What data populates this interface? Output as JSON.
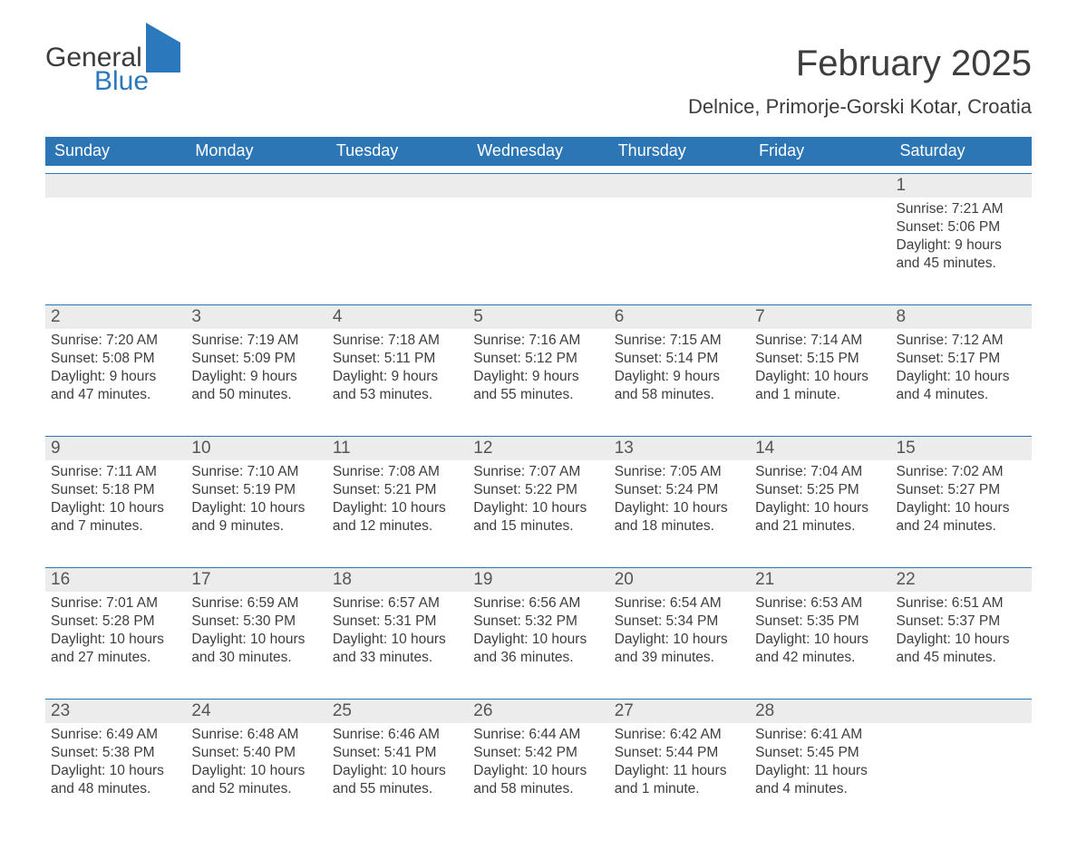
{
  "brand": {
    "general": "General",
    "blue": "Blue"
  },
  "title": "February 2025",
  "location": "Delnice, Primorje-Gorski Kotar, Croatia",
  "colors": {
    "header_bg": "#2d76b6",
    "header_text": "#ffffff",
    "daynum_bg": "#ececec",
    "daynum_border": "#2d76b6",
    "body_text": "#3d3d3d",
    "brand_blue": "#2b78bd",
    "page_bg": "#ffffff"
  },
  "weekdays": [
    "Sunday",
    "Monday",
    "Tuesday",
    "Wednesday",
    "Thursday",
    "Friday",
    "Saturday"
  ],
  "weeks": [
    {
      "nums": [
        "",
        "",
        "",
        "",
        "",
        "",
        "1"
      ],
      "cells": [
        "",
        "",
        "",
        "",
        "",
        "",
        "Sunrise: 7:21 AM\nSunset: 5:06 PM\nDaylight: 9 hours and 45 minutes."
      ]
    },
    {
      "nums": [
        "2",
        "3",
        "4",
        "5",
        "6",
        "7",
        "8"
      ],
      "cells": [
        "Sunrise: 7:20 AM\nSunset: 5:08 PM\nDaylight: 9 hours and 47 minutes.",
        "Sunrise: 7:19 AM\nSunset: 5:09 PM\nDaylight: 9 hours and 50 minutes.",
        "Sunrise: 7:18 AM\nSunset: 5:11 PM\nDaylight: 9 hours and 53 minutes.",
        "Sunrise: 7:16 AM\nSunset: 5:12 PM\nDaylight: 9 hours and 55 minutes.",
        "Sunrise: 7:15 AM\nSunset: 5:14 PM\nDaylight: 9 hours and 58 minutes.",
        "Sunrise: 7:14 AM\nSunset: 5:15 PM\nDaylight: 10 hours and 1 minute.",
        "Sunrise: 7:12 AM\nSunset: 5:17 PM\nDaylight: 10 hours and 4 minutes."
      ]
    },
    {
      "nums": [
        "9",
        "10",
        "11",
        "12",
        "13",
        "14",
        "15"
      ],
      "cells": [
        "Sunrise: 7:11 AM\nSunset: 5:18 PM\nDaylight: 10 hours and 7 minutes.",
        "Sunrise: 7:10 AM\nSunset: 5:19 PM\nDaylight: 10 hours and 9 minutes.",
        "Sunrise: 7:08 AM\nSunset: 5:21 PM\nDaylight: 10 hours and 12 minutes.",
        "Sunrise: 7:07 AM\nSunset: 5:22 PM\nDaylight: 10 hours and 15 minutes.",
        "Sunrise: 7:05 AM\nSunset: 5:24 PM\nDaylight: 10 hours and 18 minutes.",
        "Sunrise: 7:04 AM\nSunset: 5:25 PM\nDaylight: 10 hours and 21 minutes.",
        "Sunrise: 7:02 AM\nSunset: 5:27 PM\nDaylight: 10 hours and 24 minutes."
      ]
    },
    {
      "nums": [
        "16",
        "17",
        "18",
        "19",
        "20",
        "21",
        "22"
      ],
      "cells": [
        "Sunrise: 7:01 AM\nSunset: 5:28 PM\nDaylight: 10 hours and 27 minutes.",
        "Sunrise: 6:59 AM\nSunset: 5:30 PM\nDaylight: 10 hours and 30 minutes.",
        "Sunrise: 6:57 AM\nSunset: 5:31 PM\nDaylight: 10 hours and 33 minutes.",
        "Sunrise: 6:56 AM\nSunset: 5:32 PM\nDaylight: 10 hours and 36 minutes.",
        "Sunrise: 6:54 AM\nSunset: 5:34 PM\nDaylight: 10 hours and 39 minutes.",
        "Sunrise: 6:53 AM\nSunset: 5:35 PM\nDaylight: 10 hours and 42 minutes.",
        "Sunrise: 6:51 AM\nSunset: 5:37 PM\nDaylight: 10 hours and 45 minutes."
      ]
    },
    {
      "nums": [
        "23",
        "24",
        "25",
        "26",
        "27",
        "28",
        ""
      ],
      "cells": [
        "Sunrise: 6:49 AM\nSunset: 5:38 PM\nDaylight: 10 hours and 48 minutes.",
        "Sunrise: 6:48 AM\nSunset: 5:40 PM\nDaylight: 10 hours and 52 minutes.",
        "Sunrise: 6:46 AM\nSunset: 5:41 PM\nDaylight: 10 hours and 55 minutes.",
        "Sunrise: 6:44 AM\nSunset: 5:42 PM\nDaylight: 10 hours and 58 minutes.",
        "Sunrise: 6:42 AM\nSunset: 5:44 PM\nDaylight: 11 hours and 1 minute.",
        "Sunrise: 6:41 AM\nSunset: 5:45 PM\nDaylight: 11 hours and 4 minutes.",
        ""
      ]
    }
  ]
}
